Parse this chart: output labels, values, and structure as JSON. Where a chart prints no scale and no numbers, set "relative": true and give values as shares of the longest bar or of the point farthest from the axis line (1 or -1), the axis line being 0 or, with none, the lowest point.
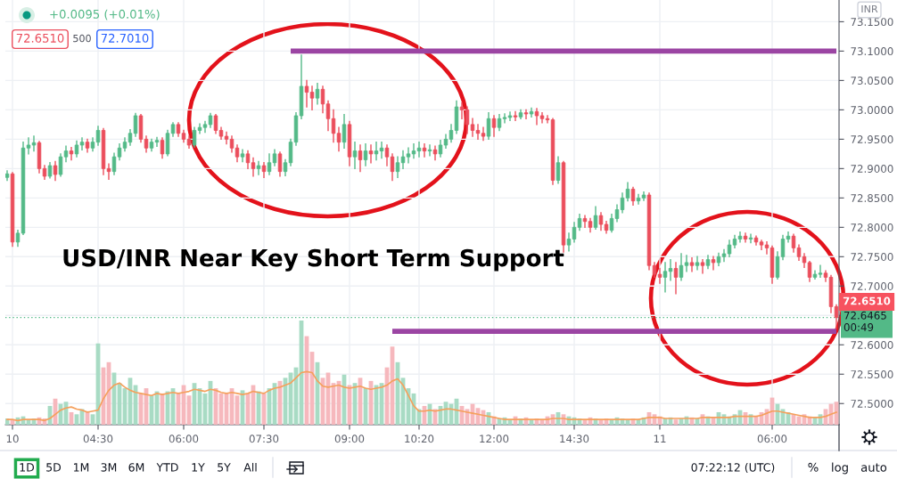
{
  "chart_data": [
    {
      "type": "candlestick",
      "title": "USD/INR Near Key Short Term Support",
      "categories": [
        null,
        "10",
        null,
        null,
        null,
        null,
        null,
        null,
        null,
        null,
        null,
        null,
        null,
        null,
        null,
        null,
        null,
        "04:30",
        null,
        null,
        null,
        null,
        null,
        null,
        null,
        null,
        null,
        null,
        null,
        null,
        null,
        null,
        null,
        "06:00",
        null,
        null,
        null,
        null,
        null,
        null,
        null,
        null,
        null,
        null,
        null,
        null,
        null,
        null,
        "07:30",
        null,
        null,
        null,
        null,
        null,
        null,
        null,
        null,
        null,
        null,
        null,
        null,
        null,
        null,
        null,
        "09:00",
        null,
        null,
        null,
        null,
        null,
        null,
        null,
        null,
        null,
        null,
        null,
        null,
        "10:20",
        null,
        null,
        null,
        null,
        null,
        null,
        null,
        null,
        null,
        null,
        null,
        null,
        null,
        "12:00",
        null,
        null,
        null,
        null,
        null,
        null,
        null,
        null,
        null,
        null,
        null,
        null,
        null,
        null,
        "14:30",
        null,
        null,
        null,
        null,
        null,
        null,
        null,
        null,
        null,
        null,
        null,
        null,
        null,
        null,
        null,
        "11",
        null,
        null,
        null,
        null,
        null,
        null,
        null,
        null,
        null,
        null,
        null,
        null,
        null,
        null,
        null,
        null,
        null,
        null,
        null,
        null,
        "06:00",
        null,
        null,
        null,
        null,
        null,
        null,
        null,
        null,
        null,
        null,
        null,
        null
      ],
      "ohlc": [
        [
          72.885,
          72.896,
          72.88,
          72.891
        ],
        [
          72.891,
          72.893,
          72.768,
          72.775
        ],
        [
          72.775,
          72.795,
          72.768,
          72.79
        ],
        [
          72.79,
          72.945,
          72.788,
          72.935
        ],
        [
          72.935,
          72.952,
          72.925,
          72.94
        ],
        [
          72.94,
          72.955,
          72.93,
          72.944
        ],
        [
          72.944,
          72.946,
          72.893,
          72.9
        ],
        [
          72.9,
          72.905,
          72.882,
          72.887
        ],
        [
          72.887,
          72.91,
          72.884,
          72.905
        ],
        [
          72.905,
          72.912,
          72.88,
          72.89
        ],
        [
          72.89,
          72.925,
          72.887,
          72.92
        ],
        [
          72.92,
          72.938,
          72.912,
          72.93
        ],
        [
          72.93,
          72.936,
          72.915,
          72.925
        ],
        [
          72.925,
          72.947,
          72.92,
          72.94
        ],
        [
          72.94,
          72.952,
          72.932,
          72.945
        ],
        [
          72.945,
          72.95,
          72.928,
          72.935
        ],
        [
          72.935,
          72.952,
          72.93,
          72.945
        ],
        [
          72.945,
          72.972,
          72.94,
          72.965
        ],
        [
          72.965,
          72.968,
          72.89,
          72.9
        ],
        [
          72.9,
          72.908,
          72.882,
          72.895
        ],
        [
          72.895,
          72.926,
          72.89,
          72.92
        ],
        [
          72.92,
          72.942,
          72.915,
          72.935
        ],
        [
          72.935,
          72.952,
          72.93,
          72.945
        ],
        [
          72.945,
          72.966,
          72.94,
          72.96
        ],
        [
          72.96,
          72.994,
          72.955,
          72.99
        ],
        [
          72.99,
          72.992,
          72.945,
          72.95
        ],
        [
          72.95,
          72.955,
          72.928,
          72.935
        ],
        [
          72.935,
          72.95,
          72.93,
          72.945
        ],
        [
          72.945,
          72.953,
          72.938,
          72.948
        ],
        [
          72.948,
          72.952,
          72.918,
          72.925
        ],
        [
          72.925,
          72.965,
          72.922,
          72.96
        ],
        [
          72.96,
          72.978,
          72.955,
          72.975
        ],
        [
          72.975,
          72.978,
          72.955,
          72.96
        ],
        [
          72.96,
          72.965,
          72.945,
          72.95
        ],
        [
          72.95,
          72.955,
          72.935,
          72.94
        ],
        [
          72.94,
          72.97,
          72.937,
          72.965
        ],
        [
          72.965,
          72.976,
          72.96,
          72.97
        ],
        [
          72.97,
          72.98,
          72.962,
          72.975
        ],
        [
          72.975,
          72.994,
          72.97,
          72.99
        ],
        [
          72.99,
          72.992,
          72.96,
          72.965
        ],
        [
          72.965,
          72.97,
          72.95,
          72.955
        ],
        [
          72.955,
          72.962,
          72.942,
          72.95
        ],
        [
          72.95,
          72.955,
          72.928,
          72.935
        ],
        [
          72.935,
          72.94,
          72.912,
          72.92
        ],
        [
          72.92,
          72.932,
          72.912,
          72.925
        ],
        [
          72.925,
          72.93,
          72.9,
          72.91
        ],
        [
          72.91,
          72.918,
          72.887,
          72.9
        ],
        [
          72.9,
          72.912,
          72.89,
          72.905
        ],
        [
          72.905,
          72.91,
          72.885,
          72.895
        ],
        [
          72.895,
          72.925,
          72.89,
          72.91
        ],
        [
          72.91,
          72.932,
          72.905,
          72.925
        ],
        [
          72.925,
          72.928,
          72.887,
          72.895
        ],
        [
          72.895,
          72.915,
          72.888,
          72.91
        ],
        [
          72.91,
          72.95,
          72.905,
          72.945
        ],
        [
          72.945,
          72.995,
          72.94,
          72.99
        ],
        [
          72.99,
          73.093,
          72.985,
          73.04
        ],
        [
          73.04,
          73.05,
          73.005,
          73.03
        ],
        [
          73.03,
          73.04,
          73.0,
          73.02
        ],
        [
          73.02,
          73.045,
          73.01,
          73.035
        ],
        [
          73.035,
          73.04,
          72.995,
          73.01
        ],
        [
          73.01,
          73.015,
          72.965,
          72.985
        ],
        [
          72.985,
          73.0,
          72.945,
          72.96
        ],
        [
          72.96,
          72.97,
          72.93,
          72.945
        ],
        [
          72.945,
          72.992,
          72.935,
          72.975
        ],
        [
          72.975,
          72.98,
          72.905,
          72.92
        ],
        [
          72.92,
          72.945,
          72.9,
          72.93
        ],
        [
          72.93,
          72.94,
          72.895,
          72.915
        ],
        [
          72.915,
          72.942,
          72.905,
          72.93
        ],
        [
          72.93,
          72.94,
          72.91,
          72.925
        ],
        [
          72.925,
          72.945,
          72.915,
          72.93
        ],
        [
          72.93,
          72.945,
          72.918,
          72.935
        ],
        [
          72.935,
          72.94,
          72.905,
          72.92
        ],
        [
          72.92,
          72.925,
          72.88,
          72.895
        ],
        [
          72.895,
          72.92,
          72.885,
          72.91
        ],
        [
          72.91,
          72.93,
          72.9,
          72.92
        ],
        [
          72.92,
          72.935,
          72.91,
          72.925
        ],
        [
          72.925,
          72.942,
          72.918,
          72.93
        ],
        [
          72.93,
          72.945,
          72.92,
          72.935
        ],
        [
          72.935,
          72.942,
          72.92,
          72.93
        ],
        [
          72.93,
          72.94,
          72.922,
          72.932
        ],
        [
          72.932,
          72.938,
          72.915,
          72.925
        ],
        [
          72.925,
          72.948,
          72.92,
          72.94
        ],
        [
          72.94,
          72.958,
          72.935,
          72.95
        ],
        [
          72.95,
          72.975,
          72.945,
          72.965
        ],
        [
          72.965,
          73.015,
          72.96,
          73.005
        ],
        [
          73.005,
          73.012,
          72.985,
          73.0
        ],
        [
          73.0,
          73.005,
          72.96,
          72.975
        ],
        [
          72.975,
          72.985,
          72.955,
          72.965
        ],
        [
          72.965,
          72.975,
          72.95,
          72.96
        ],
        [
          72.96,
          72.97,
          72.948,
          72.955
        ],
        [
          72.955,
          72.995,
          72.95,
          72.985
        ],
        [
          72.985,
          72.99,
          72.955,
          72.97
        ],
        [
          72.97,
          72.992,
          72.965,
          72.985
        ],
        [
          72.985,
          72.993,
          72.978,
          72.987
        ],
        [
          72.987,
          72.996,
          72.982,
          72.99
        ],
        [
          72.99,
          72.997,
          72.982,
          72.988
        ],
        [
          72.988,
          73.0,
          72.985,
          72.995
        ],
        [
          72.995,
          73.0,
          72.985,
          72.993
        ],
        [
          72.993,
          73.003,
          72.988,
          72.997
        ],
        [
          72.997,
          73.002,
          72.975,
          72.99
        ],
        [
          72.99,
          72.995,
          72.978,
          72.985
        ],
        [
          72.985,
          72.99,
          72.978,
          72.983
        ],
        [
          72.983,
          72.985,
          72.873,
          72.88
        ],
        [
          72.88,
          72.92,
          72.875,
          72.91
        ],
        [
          72.91,
          72.912,
          72.758,
          72.77
        ],
        [
          72.77,
          72.79,
          72.76,
          72.78
        ],
        [
          72.78,
          72.808,
          72.775,
          72.8
        ],
        [
          72.8,
          72.822,
          72.795,
          72.815
        ],
        [
          72.815,
          72.82,
          72.8,
          72.81
        ],
        [
          72.81,
          72.815,
          72.792,
          72.8
        ],
        [
          72.8,
          72.835,
          72.797,
          72.82
        ],
        [
          72.82,
          72.825,
          72.795,
          72.805
        ],
        [
          72.805,
          72.81,
          72.79,
          72.795
        ],
        [
          72.795,
          72.822,
          72.792,
          72.815
        ],
        [
          72.815,
          72.838,
          72.81,
          72.83
        ],
        [
          72.83,
          72.858,
          72.825,
          72.85
        ],
        [
          72.85,
          72.876,
          72.845,
          72.865
        ],
        [
          72.865,
          72.868,
          72.838,
          72.845
        ],
        [
          72.845,
          72.856,
          72.84,
          72.85
        ],
        [
          72.85,
          72.86,
          72.846,
          72.855
        ],
        [
          72.855,
          72.858,
          72.728,
          72.735
        ],
        [
          72.735,
          72.74,
          72.715,
          72.72
        ],
        [
          72.72,
          72.73,
          72.705,
          72.715
        ],
        [
          72.715,
          72.74,
          72.69,
          72.725
        ],
        [
          72.725,
          72.745,
          72.71,
          72.73
        ],
        [
          72.73,
          72.74,
          72.687,
          72.715
        ],
        [
          72.715,
          72.755,
          72.71,
          72.735
        ],
        [
          72.735,
          72.752,
          72.725,
          72.74
        ],
        [
          72.74,
          72.748,
          72.725,
          72.735
        ],
        [
          72.735,
          72.75,
          72.728,
          72.74
        ],
        [
          72.74,
          72.745,
          72.722,
          72.735
        ],
        [
          72.735,
          72.752,
          72.73,
          72.745
        ],
        [
          72.745,
          72.75,
          72.728,
          72.74
        ],
        [
          72.74,
          72.756,
          72.735,
          72.75
        ],
        [
          72.75,
          72.762,
          72.742,
          72.755
        ],
        [
          72.755,
          72.778,
          72.75,
          72.77
        ],
        [
          72.77,
          72.786,
          72.765,
          72.78
        ],
        [
          72.78,
          72.792,
          72.775,
          72.785
        ],
        [
          72.785,
          72.79,
          72.775,
          72.78
        ],
        [
          72.78,
          72.788,
          72.774,
          72.782
        ],
        [
          72.782,
          72.785,
          72.77,
          72.775
        ],
        [
          72.775,
          72.778,
          72.762,
          72.77
        ],
        [
          72.77,
          72.775,
          72.755,
          72.765
        ],
        [
          72.765,
          72.768,
          72.705,
          72.715
        ],
        [
          72.715,
          72.758,
          72.712,
          72.75
        ],
        [
          72.75,
          72.786,
          72.745,
          72.78
        ],
        [
          72.78,
          72.792,
          72.775,
          72.785
        ],
        [
          72.785,
          72.788,
          72.758,
          72.765
        ],
        [
          72.765,
          72.77,
          72.744,
          72.75
        ],
        [
          72.75,
          72.755,
          72.732,
          72.74
        ],
        [
          72.74,
          72.742,
          72.708,
          72.715
        ],
        [
          72.715,
          72.726,
          72.712,
          72.72
        ],
        [
          72.72,
          72.735,
          72.715,
          72.722
        ],
        [
          72.722,
          72.726,
          72.708,
          72.715
        ],
        [
          72.715,
          72.718,
          72.655,
          72.665
        ],
        [
          72.665,
          72.668,
          72.628,
          72.6465
        ]
      ],
      "colors": [
        "#53b987",
        "#eb4d5c",
        "#53b987",
        "#53b987",
        "#53b987",
        "#53b987",
        "#eb4d5c",
        "#eb4d5c",
        "#53b987",
        "#eb4d5c",
        "#53b987",
        "#53b987",
        "#eb4d5c",
        "#53b987",
        "#53b987",
        "#eb4d5c",
        "#53b987",
        "#53b987",
        "#eb4d5c",
        "#eb4d5c",
        "#53b987",
        "#53b987",
        "#53b987",
        "#53b987",
        "#53b987",
        "#eb4d5c",
        "#eb4d5c",
        "#53b987",
        "#53b987",
        "#eb4d5c",
        "#53b987",
        "#53b987",
        "#eb4d5c",
        "#eb4d5c",
        "#eb4d5c",
        "#53b987",
        "#53b987",
        "#53b987",
        "#53b987",
        "#eb4d5c",
        "#eb4d5c",
        "#eb4d5c",
        "#eb4d5c",
        "#eb4d5c",
        "#53b987",
        "#eb4d5c",
        "#eb4d5c",
        "#53b987",
        "#eb4d5c",
        "#53b987",
        "#53b987",
        "#eb4d5c",
        "#53b987",
        "#53b987",
        "#53b987",
        "#53b987",
        "#eb4d5c",
        "#eb4d5c",
        "#53b987",
        "#eb4d5c",
        "#eb4d5c",
        "#eb4d5c",
        "#eb4d5c",
        "#53b987",
        "#eb4d5c",
        "#53b987",
        "#eb4d5c",
        "#53b987",
        "#eb4d5c",
        "#53b987",
        "#53b987",
        "#eb4d5c",
        "#eb4d5c",
        "#53b987",
        "#53b987",
        "#53b987",
        "#53b987",
        "#53b987",
        "#eb4d5c",
        "#53b987",
        "#eb4d5c",
        "#53b987",
        "#53b987",
        "#53b987",
        "#53b987",
        "#eb4d5c",
        "#eb4d5c",
        "#eb4d5c",
        "#eb4d5c",
        "#eb4d5c",
        "#53b987",
        "#eb4d5c",
        "#53b987",
        "#53b987",
        "#53b987",
        "#eb4d5c",
        "#53b987",
        "#eb4d5c",
        "#53b987",
        "#eb4d5c",
        "#eb4d5c",
        "#eb4d5c",
        "#eb4d5c",
        "#53b987",
        "#eb4d5c",
        "#53b987",
        "#53b987",
        "#53b987",
        "#eb4d5c",
        "#eb4d5c",
        "#53b987",
        "#eb4d5c",
        "#eb4d5c",
        "#53b987",
        "#53b987",
        "#53b987",
        "#53b987",
        "#eb4d5c",
        "#53b987",
        "#53b987",
        "#eb4d5c",
        "#eb4d5c",
        "#eb4d5c",
        "#53b987",
        "#53b987",
        "#eb4d5c",
        "#53b987",
        "#53b987",
        "#eb4d5c",
        "#53b987",
        "#eb4d5c",
        "#53b987",
        "#eb4d5c",
        "#53b987",
        "#53b987",
        "#53b987",
        "#53b987",
        "#53b987",
        "#eb4d5c",
        "#53b987",
        "#eb4d5c",
        "#eb4d5c",
        "#eb4d5c",
        "#eb4d5c",
        "#53b987",
        "#53b987",
        "#53b987",
        "#eb4d5c",
        "#eb4d5c",
        "#eb4d5c",
        "#eb4d5c",
        "#53b987",
        "#53b987",
        "#eb4d5c",
        "#eb4d5c",
        "#eb4d5c"
      ],
      "series": [
        {
          "type": "line",
          "color": "#9b45a3",
          "values": [
            null,
            null,
            null,
            null,
            null,
            null,
            null,
            null,
            null,
            null,
            null,
            null,
            null,
            null,
            null,
            null,
            null,
            null,
            null,
            null,
            null,
            null,
            null,
            null,
            null,
            null,
            null,
            null,
            null,
            null,
            null,
            null,
            null,
            null,
            null,
            null,
            null,
            null,
            null,
            null,
            null,
            null,
            null,
            null,
            null,
            null,
            null,
            null,
            null,
            null,
            null,
            null,
            null,
            73.1,
            73.1,
            73.1,
            73.1,
            73.1,
            73.1,
            73.1,
            73.1,
            73.1,
            73.1,
            73.1,
            73.1,
            73.1,
            73.1,
            73.1,
            73.1,
            73.1,
            73.1,
            73.1,
            73.1,
            73.1,
            73.1,
            73.1,
            73.1,
            73.1,
            73.1,
            73.1,
            73.1,
            73.1,
            73.1,
            73.1,
            73.1,
            73.1,
            73.1,
            73.1,
            73.1,
            73.1,
            73.1,
            73.1,
            73.1,
            73.1,
            73.1,
            73.1,
            73.1,
            73.1,
            73.1,
            73.1,
            73.1,
            73.1,
            73.1,
            73.1,
            73.1,
            73.1,
            73.1,
            73.1,
            73.1,
            73.1,
            73.1,
            73.1,
            73.1,
            73.1,
            73.1,
            73.1,
            73.1,
            73.1,
            73.1,
            73.1,
            73.1,
            73.1,
            73.1,
            73.1,
            73.1,
            73.1,
            73.1,
            73.1,
            73.1,
            73.1,
            73.1,
            73.1,
            73.1,
            73.1,
            73.1,
            73.1,
            73.1,
            73.1,
            73.1,
            73.1,
            73.1,
            73.1,
            73.1,
            73.1,
            73.1,
            73.1,
            73.1,
            73.1,
            73.1,
            73.1,
            73.1,
            73.1,
            73.1,
            73.1,
            73.1,
            73.1
          ]
        },
        {
          "type": "line",
          "color": "#9b45a3",
          "values": [
            null,
            null,
            null,
            null,
            null,
            null,
            null,
            null,
            null,
            null,
            null,
            null,
            null,
            null,
            null,
            null,
            null,
            null,
            null,
            null,
            null,
            null,
            null,
            null,
            null,
            null,
            null,
            null,
            null,
            null,
            null,
            null,
            null,
            null,
            null,
            null,
            null,
            null,
            null,
            null,
            null,
            null,
            null,
            null,
            null,
            null,
            null,
            null,
            null,
            null,
            null,
            null,
            null,
            null,
            null,
            null,
            null,
            null,
            null,
            null,
            null,
            null,
            null,
            null,
            null,
            null,
            null,
            null,
            null,
            null,
            null,
            null,
            72.623,
            72.623,
            72.623,
            72.623,
            72.623,
            72.623,
            72.623,
            72.623,
            72.623,
            72.623,
            72.623,
            72.623,
            72.623,
            72.623,
            72.623,
            72.623,
            72.623,
            72.623,
            72.623,
            72.623,
            72.623,
            72.623,
            72.623,
            72.623,
            72.623,
            72.623,
            72.623,
            72.623,
            72.623,
            72.623,
            72.623,
            72.623,
            72.623,
            72.623,
            72.623,
            72.623,
            72.623,
            72.623,
            72.623,
            72.623,
            72.623,
            72.623,
            72.623,
            72.623,
            72.623,
            72.623,
            72.623,
            72.623,
            72.623,
            72.623,
            72.623,
            72.623,
            72.623,
            72.623,
            72.623,
            72.623,
            72.623,
            72.623,
            72.623,
            72.623,
            72.623,
            72.623,
            72.623,
            72.623,
            72.623,
            72.623,
            72.623,
            72.623,
            72.623,
            72.623,
            72.623,
            72.623,
            72.623,
            72.623,
            72.623,
            72.623,
            72.623,
            72.623,
            72.623,
            72.623,
            72.623,
            72.623,
            72.623,
            72.623
          ]
        }
      ],
      "ref_lines": [
        {
          "axis": "y",
          "value": 72.6465,
          "label": "72.6465\n00:49",
          "color": "#53b987",
          "line_style": "dotted"
        }
      ],
      "ylim": [
        72.464,
        73.187
      ],
      "yticks": [
        {
          "value": 72.5,
          "label": "72.5000"
        },
        {
          "value": 72.55,
          "label": "72.5500"
        },
        {
          "value": 72.6,
          "label": "72.6000"
        },
        {
          "value": 72.65,
          "label": null
        },
        {
          "value": 72.7,
          "label": "72.7000"
        },
        {
          "value": 72.75,
          "label": "72.7500"
        },
        {
          "value": 72.8,
          "label": "72.8000"
        },
        {
          "value": 72.85,
          "label": "72.8500"
        },
        {
          "value": 72.9,
          "label": "72.9000"
        },
        {
          "value": 72.95,
          "label": "72.9500"
        },
        {
          "value": 73.0,
          "label": "73.0000"
        },
        {
          "value": 73.05,
          "label": "73.0500"
        },
        {
          "value": 73.1,
          "label": "73.1000"
        },
        {
          "value": 73.15,
          "label": "73.1500"
        }
      ],
      "grid": true,
      "annotations": [
        "+0.0095 (+0.01%)",
        "72.6510",
        "500",
        "72.7010",
        "INR",
        "72.6510",
        "1D",
        "5D",
        "1M",
        "3M",
        "6M",
        "YTD",
        "1Y",
        "5Y",
        "All",
        "07:22:12 (UTC)",
        "%",
        "log",
        "auto"
      ]
    },
    {
      "type": "bar",
      "relative": true,
      "tick_labels": false,
      "categories": [
        null,
        null,
        null,
        null,
        null,
        null,
        null,
        null,
        null,
        null,
        null,
        null,
        null,
        null,
        null,
        null,
        null,
        null,
        null,
        null,
        null,
        null,
        null,
        null,
        null,
        null,
        null,
        null,
        null,
        null,
        null,
        null,
        null,
        null,
        null,
        null,
        null,
        null,
        null,
        null,
        null,
        null,
        null,
        null,
        null,
        null,
        null,
        null,
        null,
        null,
        null,
        null,
        null,
        null,
        null,
        null,
        null,
        null,
        null,
        null,
        null,
        null,
        null,
        null,
        null,
        null,
        null,
        null,
        null,
        null,
        null,
        null,
        null,
        null,
        null,
        null,
        null,
        null,
        null,
        null,
        null,
        null,
        null,
        null,
        null,
        null,
        null,
        null,
        null,
        null,
        null,
        null,
        null,
        null,
        null,
        null,
        null,
        null,
        null,
        null,
        null,
        null,
        null,
        null,
        null,
        null,
        null,
        null,
        null,
        null,
        null,
        null,
        null,
        null,
        null,
        null,
        null,
        null,
        null,
        null,
        null,
        null,
        null,
        null,
        null,
        null,
        null,
        null,
        null,
        null,
        null,
        null,
        null,
        null,
        null,
        null,
        null,
        null,
        null,
        null,
        null,
        null,
        null,
        null,
        null,
        null,
        null,
        null,
        null,
        null,
        null,
        null,
        null,
        null,
        null,
        null
      ],
      "series": [
        {
          "colors": [
            "#a8dbc4",
            "#f6b8bd",
            "#a8dbc4",
            "#a8dbc4",
            "#a8dbc4",
            "#a8dbc4",
            "#f6b8bd",
            "#f6b8bd",
            "#a8dbc4",
            "#f6b8bd",
            "#a8dbc4",
            "#a8dbc4",
            "#f6b8bd",
            "#a8dbc4",
            "#a8dbc4",
            "#f6b8bd",
            "#a8dbc4",
            "#a8dbc4",
            "#f6b8bd",
            "#f6b8bd",
            "#a8dbc4",
            "#a8dbc4",
            "#a8dbc4",
            "#a8dbc4",
            "#a8dbc4",
            "#f6b8bd",
            "#f6b8bd",
            "#a8dbc4",
            "#a8dbc4",
            "#f6b8bd",
            "#a8dbc4",
            "#a8dbc4",
            "#f6b8bd",
            "#f6b8bd",
            "#f6b8bd",
            "#a8dbc4",
            "#a8dbc4",
            "#a8dbc4",
            "#a8dbc4",
            "#f6b8bd",
            "#f6b8bd",
            "#f6b8bd",
            "#f6b8bd",
            "#f6b8bd",
            "#a8dbc4",
            "#f6b8bd",
            "#f6b8bd",
            "#a8dbc4",
            "#f6b8bd",
            "#a8dbc4",
            "#a8dbc4",
            "#f6b8bd",
            "#a8dbc4",
            "#a8dbc4",
            "#a8dbc4",
            "#a8dbc4",
            "#f6b8bd",
            "#f6b8bd",
            "#a8dbc4",
            "#f6b8bd",
            "#f6b8bd",
            "#f6b8bd",
            "#f6b8bd",
            "#a8dbc4",
            "#f6b8bd",
            "#a8dbc4",
            "#f6b8bd",
            "#a8dbc4",
            "#f6b8bd",
            "#a8dbc4",
            "#a8dbc4",
            "#f6b8bd",
            "#f6b8bd",
            "#a8dbc4",
            "#a8dbc4",
            "#a8dbc4",
            "#a8dbc4",
            "#a8dbc4",
            "#f6b8bd",
            "#a8dbc4",
            "#f6b8bd",
            "#a8dbc4",
            "#a8dbc4",
            "#a8dbc4",
            "#a8dbc4",
            "#f6b8bd",
            "#f6b8bd",
            "#f6b8bd",
            "#f6b8bd",
            "#f6b8bd",
            "#a8dbc4",
            "#f6b8bd",
            "#a8dbc4",
            "#a8dbc4",
            "#a8dbc4",
            "#f6b8bd",
            "#a8dbc4",
            "#f6b8bd",
            "#a8dbc4",
            "#f6b8bd",
            "#f6b8bd",
            "#f6b8bd",
            "#f6b8bd",
            "#a8dbc4",
            "#f6b8bd",
            "#a8dbc4",
            "#a8dbc4",
            "#a8dbc4",
            "#f6b8bd",
            "#f6b8bd",
            "#a8dbc4",
            "#f6b8bd",
            "#f6b8bd",
            "#a8dbc4",
            "#a8dbc4",
            "#a8dbc4",
            "#a8dbc4",
            "#f6b8bd",
            "#a8dbc4",
            "#a8dbc4",
            "#f6b8bd",
            "#f6b8bd",
            "#f6b8bd",
            "#a8dbc4",
            "#a8dbc4",
            "#f6b8bd",
            "#a8dbc4",
            "#a8dbc4",
            "#f6b8bd",
            "#a8dbc4",
            "#f6b8bd",
            "#a8dbc4",
            "#f6b8bd",
            "#a8dbc4",
            "#a8dbc4",
            "#a8dbc4",
            "#a8dbc4",
            "#a8dbc4",
            "#f6b8bd",
            "#a8dbc4",
            "#f6b8bd",
            "#f6b8bd",
            "#f6b8bd",
            "#f6b8bd",
            "#a8dbc4",
            "#a8dbc4",
            "#a8dbc4",
            "#f6b8bd",
            "#f6b8bd",
            "#f6b8bd",
            "#f6b8bd",
            "#a8dbc4",
            "#a8dbc4",
            "#f6b8bd",
            "#f6b8bd",
            "#f6b8bd"
          ],
          "values": [
            0.06,
            0.05,
            0.07,
            0.08,
            0.05,
            0.06,
            0.07,
            0.06,
            0.18,
            0.25,
            0.2,
            0.22,
            0.12,
            0.1,
            0.15,
            0.13,
            0.1,
            0.78,
            0.55,
            0.6,
            0.5,
            0.4,
            0.35,
            0.45,
            0.38,
            0.3,
            0.35,
            0.28,
            0.32,
            0.3,
            0.32,
            0.35,
            0.3,
            0.38,
            0.28,
            0.4,
            0.35,
            0.3,
            0.42,
            0.35,
            0.3,
            0.3,
            0.35,
            0.28,
            0.33,
            0.3,
            0.38,
            0.32,
            0.3,
            0.35,
            0.4,
            0.42,
            0.45,
            0.5,
            0.55,
            1,
            0.85,
            0.7,
            0.6,
            0.45,
            0.5,
            0.4,
            0.42,
            0.48,
            0.38,
            0.4,
            0.45,
            0.35,
            0.42,
            0.38,
            0.4,
            0.55,
            0.75,
            0.6,
            0.45,
            0.35,
            0.3,
            0.15,
            0.18,
            0.2,
            0.15,
            0.18,
            0.22,
            0.2,
            0.25,
            0.18,
            0.15,
            0.2,
            0.16,
            0.14,
            0.12,
            0.08,
            0.06,
            0.07,
            0.05,
            0.08,
            0.06,
            0.07,
            0.05,
            0.06,
            0.05,
            0.08,
            0.1,
            0.12,
            0.1,
            0.08,
            0.07,
            0.06,
            0.05,
            0.07,
            0.06,
            0.05,
            0.06,
            0.05,
            0.07,
            0.06,
            0.05,
            0.06,
            0.05,
            0.07,
            0.12,
            0.1,
            0.08,
            0.06,
            0.07,
            0.05,
            0.06,
            0.08,
            0.07,
            0.06,
            0.1,
            0.08,
            0.07,
            0.12,
            0.1,
            0.08,
            0.1,
            0.14,
            0.12,
            0.1,
            0.08,
            0.12,
            0.15,
            0.26,
            0.2,
            0.15,
            0.12,
            0.1,
            0.08,
            0.1,
            0.08,
            0.07,
            0.1,
            0.15,
            0.2,
            0.22
          ]
        },
        {
          "type": "line",
          "color": "#f5a05c",
          "values": [
            0.05,
            0.05,
            0.04,
            0.05,
            0.05,
            0.05,
            0.05,
            0.04,
            0.06,
            0.1,
            0.14,
            0.16,
            0.17,
            0.15,
            0.14,
            0.12,
            0.13,
            0.14,
            0.25,
            0.33,
            0.38,
            0.4,
            0.36,
            0.33,
            0.31,
            0.3,
            0.29,
            0.28,
            0.3,
            0.29,
            0.3,
            0.31,
            0.3,
            0.31,
            0.32,
            0.34,
            0.33,
            0.32,
            0.34,
            0.33,
            0.31,
            0.3,
            0.31,
            0.3,
            0.29,
            0.3,
            0.32,
            0.31,
            0.3,
            0.33,
            0.35,
            0.36,
            0.38,
            0.4,
            0.45,
            0.5,
            0.51,
            0.5,
            0.42,
            0.37,
            0.36,
            0.37,
            0.38,
            0.36,
            0.35,
            0.36,
            0.37,
            0.35,
            0.34,
            0.35,
            0.36,
            0.38,
            0.42,
            0.44,
            0.38,
            0.28,
            0.18,
            0.13,
            0.13,
            0.14,
            0.13,
            0.14,
            0.15,
            0.15,
            0.14,
            0.13,
            0.12,
            0.11,
            0.1,
            0.09,
            0.08,
            0.07,
            0.06,
            0.05,
            0.05,
            0.05,
            0.05,
            0.05,
            0.05,
            0.05,
            0.05,
            0.05,
            0.06,
            0.06,
            0.06,
            0.05,
            0.05,
            0.05,
            0.05,
            0.05,
            0.05,
            0.05,
            0.05,
            0.05,
            0.05,
            0.05,
            0.05,
            0.05,
            0.05,
            0.06,
            0.07,
            0.07,
            0.07,
            0.06,
            0.06,
            0.06,
            0.06,
            0.06,
            0.06,
            0.06,
            0.07,
            0.07,
            0.07,
            0.07,
            0.07,
            0.07,
            0.08,
            0.08,
            0.08,
            0.08,
            0.08,
            0.09,
            0.11,
            0.13,
            0.13,
            0.12,
            0.11,
            0.1,
            0.09,
            0.08,
            0.07,
            0.07,
            0.07,
            0.08,
            0.1,
            0.12
          ]
        }
      ]
    }
  ]
}
